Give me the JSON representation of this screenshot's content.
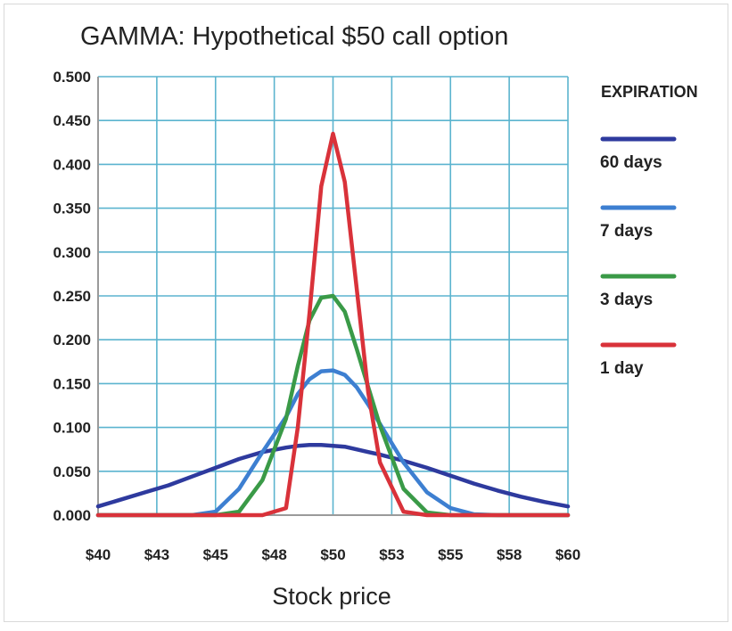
{
  "chart_data": {
    "type": "line",
    "title": "GAMMA: Hypothetical $50 call option",
    "xlabel": "Stock price",
    "ylabel": "",
    "xlim": [
      40,
      60
    ],
    "ylim": [
      0,
      0.5
    ],
    "grid": true,
    "legend_title": "EXPIRATION",
    "legend_position": "right",
    "x_ticks": [
      "$40",
      "$43",
      "$45",
      "$48",
      "$50",
      "$53",
      "$55",
      "$58",
      "$60"
    ],
    "y_ticks": [
      "0.000",
      "0.050",
      "0.100",
      "0.150",
      "0.200",
      "0.250",
      "0.300",
      "0.350",
      "0.400",
      "0.450",
      "0.500"
    ],
    "x": [
      40,
      41,
      42,
      43,
      44,
      45,
      46,
      47,
      48,
      48.5,
      49,
      49.5,
      50,
      50.5,
      51,
      51.5,
      52,
      53,
      54,
      55,
      56,
      57,
      58,
      59,
      60
    ],
    "series": [
      {
        "name": "60 days",
        "color": "#2e3a9e",
        "values": [
          0.01,
          0.018,
          0.026,
          0.034,
          0.044,
          0.054,
          0.064,
          0.072,
          0.077,
          0.079,
          0.08,
          0.08,
          0.079,
          0.078,
          0.075,
          0.072,
          0.069,
          0.062,
          0.054,
          0.045,
          0.036,
          0.028,
          0.021,
          0.015,
          0.01
        ]
      },
      {
        "name": "7 days",
        "color": "#3d7fd1",
        "values": [
          0.0,
          0.0,
          0.0,
          0.0,
          0.0,
          0.004,
          0.03,
          0.072,
          0.112,
          0.138,
          0.155,
          0.164,
          0.165,
          0.16,
          0.146,
          0.126,
          0.104,
          0.06,
          0.026,
          0.008,
          0.001,
          0.0,
          0.0,
          0.0,
          0.0
        ]
      },
      {
        "name": "3 days",
        "color": "#3a9a47",
        "values": [
          0.0,
          0.0,
          0.0,
          0.0,
          0.0,
          0.0,
          0.004,
          0.04,
          0.11,
          0.17,
          0.222,
          0.248,
          0.25,
          0.232,
          0.19,
          0.146,
          0.102,
          0.03,
          0.003,
          0.0,
          0.0,
          0.0,
          0.0,
          0.0,
          0.0
        ]
      },
      {
        "name": "1 day",
        "color": "#d9323a",
        "values": [
          0.0,
          0.0,
          0.0,
          0.0,
          0.0,
          0.0,
          0.0,
          0.0,
          0.008,
          0.1,
          0.23,
          0.375,
          0.435,
          0.38,
          0.26,
          0.14,
          0.06,
          0.004,
          0.0,
          0.0,
          0.0,
          0.0,
          0.0,
          0.0,
          0.0
        ]
      }
    ]
  }
}
